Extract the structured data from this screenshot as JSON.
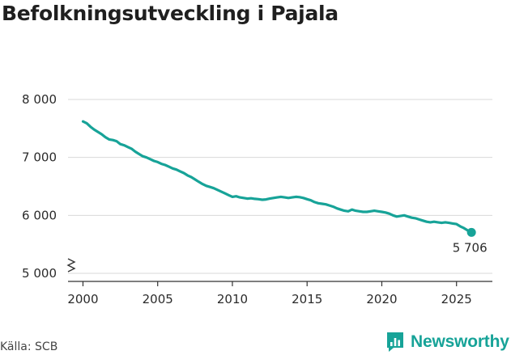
{
  "title": "Befolkningsutveckling i Pajala",
  "source": "Källa: SCB",
  "brand": "Newsworthy",
  "colors": {
    "line": "#17a398",
    "grid": "#d9d9d9",
    "axis": "#333333",
    "brand": "#17a398"
  },
  "chart_data": {
    "type": "line",
    "title": "Befolkningsutveckling i Pajala",
    "xlabel": "",
    "ylabel": "",
    "xlim": [
      1999.0,
      2027.4
    ],
    "ylim": [
      5000,
      8300
    ],
    "x_ticks": [
      2000,
      2005,
      2010,
      2015,
      2020,
      2025
    ],
    "x_tick_labels": [
      "2000",
      "2005",
      "2010",
      "2015",
      "2020",
      "2025"
    ],
    "y_ticks": [
      5000,
      6000,
      7000,
      8000
    ],
    "y_tick_labels": [
      "5 000",
      "6 000",
      "7 000",
      "8 000"
    ],
    "grid": true,
    "axis_break": true,
    "last_value_label": "5 706",
    "series": [
      {
        "name": "Befolkning",
        "x": [
          2000.0,
          2000.25,
          2000.5,
          2000.75,
          2001.0,
          2001.25,
          2001.5,
          2001.75,
          2002.0,
          2002.25,
          2002.5,
          2002.75,
          2003.0,
          2003.25,
          2003.5,
          2003.75,
          2004.0,
          2004.25,
          2004.5,
          2004.75,
          2005.0,
          2005.25,
          2005.5,
          2005.75,
          2006.0,
          2006.25,
          2006.5,
          2006.75,
          2007.0,
          2007.25,
          2007.5,
          2007.75,
          2008.0,
          2008.25,
          2008.5,
          2008.75,
          2009.0,
          2009.25,
          2009.5,
          2009.75,
          2010.0,
          2010.25,
          2010.5,
          2010.75,
          2011.0,
          2011.25,
          2011.5,
          2011.75,
          2012.0,
          2012.25,
          2012.5,
          2012.75,
          2013.0,
          2013.25,
          2013.5,
          2013.75,
          2014.0,
          2014.25,
          2014.5,
          2014.75,
          2015.0,
          2015.25,
          2015.5,
          2015.75,
          2016.0,
          2016.25,
          2016.5,
          2016.75,
          2017.0,
          2017.25,
          2017.5,
          2017.75,
          2018.0,
          2018.25,
          2018.5,
          2018.75,
          2019.0,
          2019.25,
          2019.5,
          2019.75,
          2020.0,
          2020.25,
          2020.5,
          2020.75,
          2021.0,
          2021.25,
          2021.5,
          2021.75,
          2022.0,
          2022.25,
          2022.5,
          2022.75,
          2023.0,
          2023.25,
          2023.5,
          2023.75,
          2024.0,
          2024.25,
          2024.5,
          2024.75,
          2025.0,
          2025.25,
          2025.5,
          2025.75,
          2026.0
        ],
        "values": [
          7620,
          7590,
          7530,
          7480,
          7440,
          7400,
          7350,
          7310,
          7300,
          7280,
          7230,
          7210,
          7180,
          7150,
          7100,
          7060,
          7020,
          7000,
          6970,
          6940,
          6920,
          6890,
          6870,
          6840,
          6810,
          6790,
          6760,
          6730,
          6690,
          6660,
          6620,
          6580,
          6540,
          6510,
          6490,
          6470,
          6440,
          6410,
          6380,
          6350,
          6320,
          6330,
          6310,
          6300,
          6290,
          6295,
          6285,
          6280,
          6270,
          6275,
          6290,
          6300,
          6310,
          6320,
          6310,
          6300,
          6310,
          6320,
          6315,
          6300,
          6280,
          6260,
          6230,
          6210,
          6200,
          6190,
          6170,
          6150,
          6120,
          6100,
          6080,
          6070,
          6100,
          6080,
          6070,
          6060,
          6060,
          6070,
          6080,
          6070,
          6060,
          6050,
          6030,
          6000,
          5980,
          5990,
          6000,
          5980,
          5960,
          5950,
          5930,
          5910,
          5890,
          5880,
          5890,
          5880,
          5870,
          5880,
          5870,
          5860,
          5850,
          5810,
          5780,
          5740,
          5706
        ]
      }
    ]
  }
}
